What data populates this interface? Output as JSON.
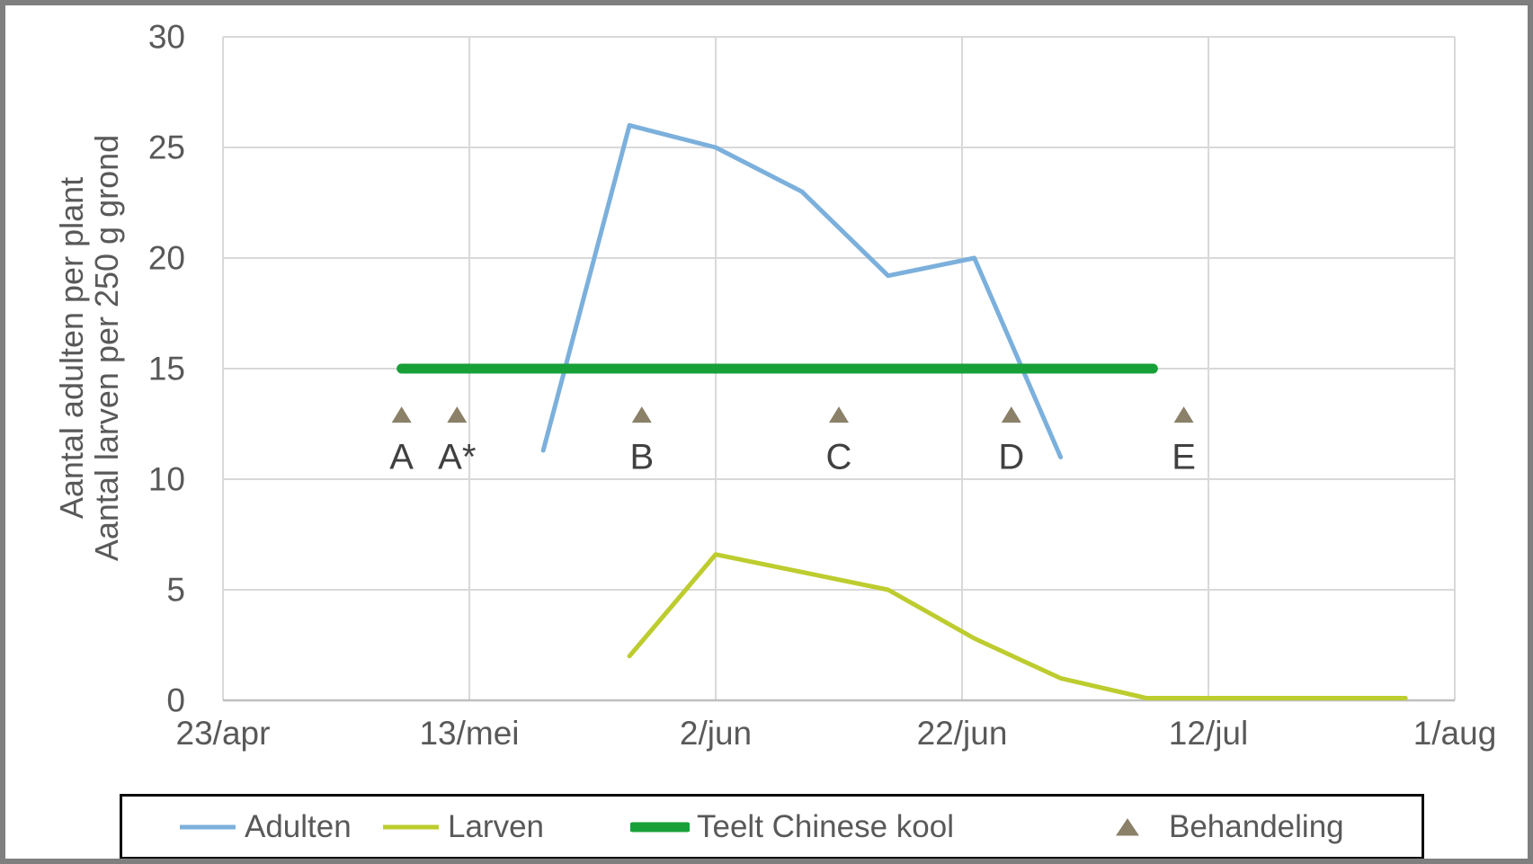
{
  "chart_data": {
    "type": "line",
    "title": "",
    "ylabel_line1": "Aantal adulten per plant",
    "ylabel_line2": "Aantal larven per 250 g grond",
    "xlabel": "",
    "grid": true,
    "ylim": [
      0,
      30
    ],
    "y_ticks": [
      0,
      5,
      10,
      15,
      20,
      25,
      30
    ],
    "xlim_days": [
      0,
      100
    ],
    "x_tick_days": [
      0,
      20,
      40,
      60,
      80,
      100
    ],
    "x_tick_labels": [
      "23/apr",
      "13/mei",
      "2/jun",
      "22/jun",
      "12/jul",
      "1/aug"
    ],
    "colors": {
      "adulten": "#7cb0dc",
      "larven": "#bdcc2e",
      "teelt": "#18a038",
      "behandeling": "#8b8068",
      "tick_text": "#595959",
      "annotation_text": "#404040",
      "gridline": "#d9d9d9",
      "axis_line": "#bfbfbf"
    },
    "series": [
      {
        "name": "Adulten",
        "type": "line",
        "color": "#7cb0dc",
        "stroke_width": 5,
        "points": [
          {
            "date": "19/mei",
            "day": 26,
            "value": 11.3
          },
          {
            "date": "26/mei",
            "day": 33,
            "value": 26
          },
          {
            "date": "2/jun",
            "day": 40,
            "value": 25
          },
          {
            "date": "9/jun",
            "day": 47,
            "value": 23
          },
          {
            "date": "16/jun",
            "day": 54,
            "value": 19.2
          },
          {
            "date": "23/jun",
            "day": 61,
            "value": 20
          },
          {
            "date": "30/jun",
            "day": 68,
            "value": 11
          }
        ]
      },
      {
        "name": "Larven",
        "type": "line",
        "color": "#bdcc2e",
        "stroke_width": 5,
        "points": [
          {
            "date": "26/mei",
            "day": 33,
            "value": 2
          },
          {
            "date": "2/jun",
            "day": 40,
            "value": 6.6
          },
          {
            "date": "16/jun",
            "day": 54,
            "value": 5
          },
          {
            "date": "23/jun",
            "day": 61,
            "value": 2.8
          },
          {
            "date": "30/jun",
            "day": 68,
            "value": 1
          },
          {
            "date": "7/jul",
            "day": 75,
            "value": 0.1
          },
          {
            "date": "28/jul",
            "day": 96,
            "value": 0.1
          }
        ]
      },
      {
        "name": "Teelt Chinese kool",
        "type": "line",
        "color": "#18a038",
        "stroke_width": 11,
        "points": [
          {
            "date": "8/mei",
            "day": 14.5,
            "value": 15
          },
          {
            "date": "7/jul",
            "day": 75.5,
            "value": 15
          }
        ]
      },
      {
        "name": "Behandeling",
        "type": "scatter-triangle",
        "color": "#8b8068",
        "marker_y": 12.9,
        "label_y": 11.0,
        "points": [
          {
            "label": "A",
            "date": "8/mei",
            "day": 14.5
          },
          {
            "label": "A*",
            "date": "12/mei",
            "day": 19
          },
          {
            "label": "B",
            "date": "27/mei",
            "day": 34
          },
          {
            "label": "C",
            "date": "12/jun",
            "day": 50
          },
          {
            "label": "D",
            "date": "26/jun",
            "day": 64
          },
          {
            "label": "E",
            "date": "10/jul",
            "day": 78
          }
        ]
      }
    ],
    "legend": {
      "position": "bottom",
      "labels": [
        "Adulten",
        "Larven",
        "Teelt Chinese kool",
        "Behandeling"
      ]
    }
  }
}
